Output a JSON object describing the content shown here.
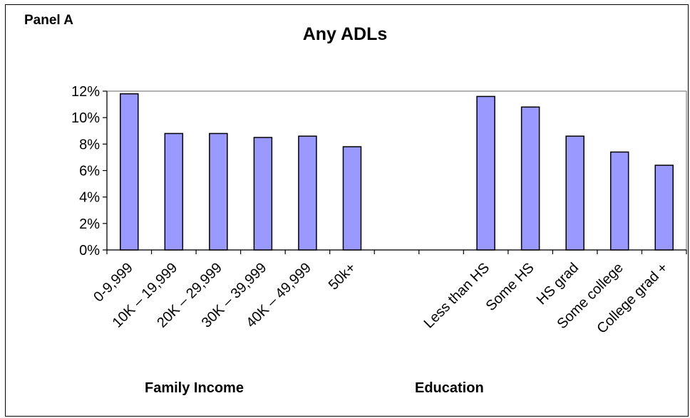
{
  "panel_label": "Panel A",
  "chart_data": {
    "type": "bar",
    "title": "Any ADLs",
    "categories": [
      "0-9,999",
      "10K – 19,999",
      "20K – 29,999",
      "30K – 39,999",
      "40K – 49,999",
      "50k+",
      "",
      "",
      "Less than HS",
      "Some HS",
      "HS grad",
      "Some college",
      "College grad +"
    ],
    "series": [
      {
        "values": [
          11.8,
          8.8,
          8.8,
          8.5,
          8.6,
          7.8,
          null,
          null,
          11.6,
          10.8,
          8.6,
          7.4,
          6.4
        ]
      }
    ],
    "group_labels": [
      "Family Income",
      "Education"
    ],
    "ylim": [
      0,
      12
    ],
    "yticks": [
      "0%",
      "2%",
      "4%",
      "6%",
      "8%",
      "10%",
      "12%"
    ],
    "ytick_values": [
      0,
      2,
      4,
      6,
      8,
      10,
      12
    ],
    "grid": false,
    "legend": "none",
    "colors": {
      "bar_fill": "#9999ff",
      "bar_stroke": "#000000",
      "plot_border": "#808080"
    }
  }
}
